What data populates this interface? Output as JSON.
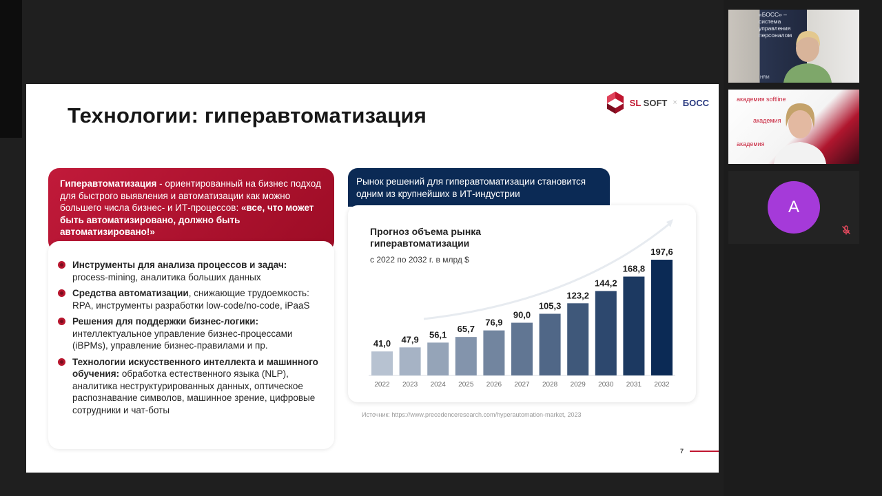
{
  "slide": {
    "title": "Технологии: гиперавтоматизация",
    "logo": {
      "company": "SL SOFT",
      "company_a": "SL ",
      "company_b": "SOFT",
      "sep": "×",
      "product": "БОСС"
    },
    "definition": {
      "term": "Гиперавтоматизация",
      "text": " - ориентированный на бизнес подход для быстрого выявления и автоматизации как можно большего числа бизнес- и ИТ-процессов: ",
      "quote": "«все, что может быть автоматизировано, должно быть автоматизировано!»"
    },
    "items": [
      {
        "bold": "Инструменты для анализа процессов и задач:",
        "text": " process-mining, аналитика больших данных"
      },
      {
        "bold": "Средства автоматизации",
        "text": ", снижающие трудоемкость: RPA, инструменты разработки low-code/no-code, iPaaS"
      },
      {
        "bold": "Решения для поддержки бизнес-логики:",
        "text": " интеллектуальное управление бизнес-процессами (iBPMs), управление бизнес-правилами и пр."
      },
      {
        "bold": "Технологии искусственного интеллекта и машинного обучения:",
        "text": " обработка естественного языка (NLP), аналитика неструктурированных данных, оптическое распознавание символов, машинное зрение, цифровые сотрудники и чат-боты"
      }
    ],
    "market_header": "Рынок решений для гиперавтоматизации становится одним из крупнейших в ИТ-индустрии",
    "source": "Источник: https://www.precedenceresearch.com/hyperautomation-market, 2023",
    "page_number": "7"
  },
  "chart_data": {
    "type": "bar",
    "title": "Прогноз объема рынка гиперавтоматизации",
    "subtitle": "с 2022 по 2032 г. в млрд $",
    "categories": [
      "2022",
      "2023",
      "2024",
      "2025",
      "2026",
      "2027",
      "2028",
      "2029",
      "2030",
      "2031",
      "2032"
    ],
    "values": [
      41.0,
      47.9,
      56.1,
      65.7,
      76.9,
      90.0,
      105.3,
      123.2,
      144.2,
      168.8,
      197.6
    ],
    "value_labels": [
      "41,0",
      "47,9",
      "56,1",
      "65,7",
      "76,9",
      "90,0",
      "105,3",
      "123,2",
      "144,2",
      "168,8",
      "197,6"
    ],
    "ylim": [
      0,
      200
    ],
    "grid": false,
    "legend": "none",
    "colors": {
      "light": "#b7c2d1",
      "dark": "#0b2a55"
    }
  },
  "video_call": {
    "tiles": [
      {
        "poster": [
          "«БОСС» –",
          "система",
          "управления",
          "персоналом"
        ],
        "tag": "HRM"
      },
      {
        "labels": [
          "академия softline",
          "академия",
          "академия"
        ]
      },
      {
        "initial": "A"
      }
    ]
  }
}
